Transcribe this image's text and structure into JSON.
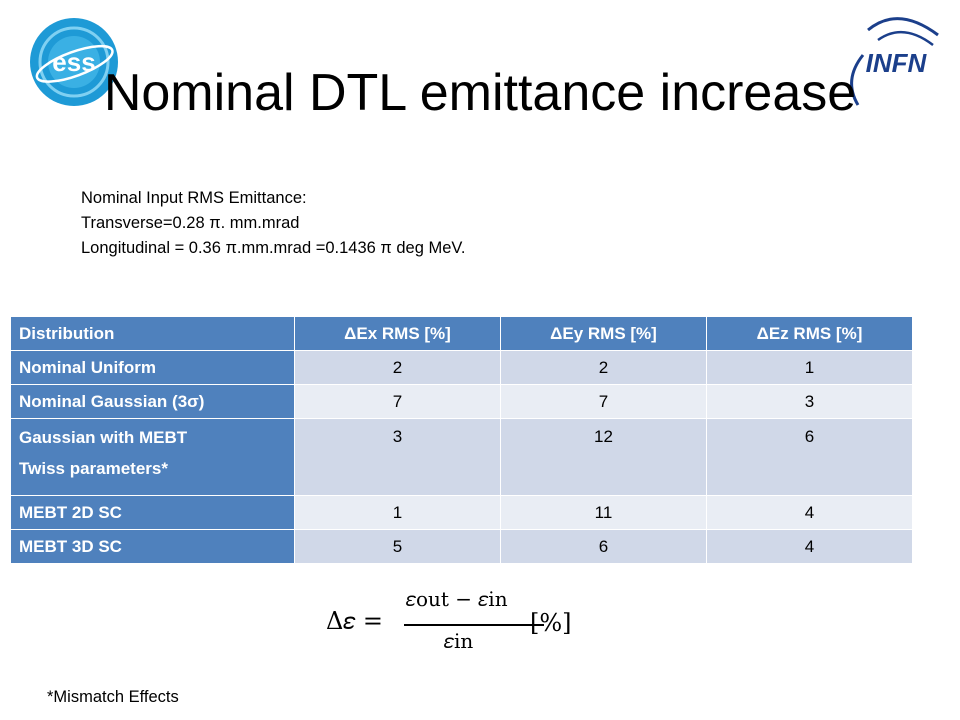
{
  "header": {
    "title": "Nominal DTL emittance increase",
    "logo_left_text": "ess",
    "logo_right_text": "INFN"
  },
  "intro": {
    "line1": "Nominal Input RMS Emittance:",
    "line2": "Transverse=0.28 π. mm.mrad",
    "line3": "Longitudinal = 0.36 π.mm.mrad =0.1436 π deg MeV."
  },
  "table": {
    "headers": [
      "Distribution",
      "ΔEx RMS [%]",
      "ΔEy RMS [%]",
      "ΔEz RMS [%]"
    ],
    "rows": [
      {
        "name": "Nominal Uniform",
        "ex": "2",
        "ey": "2",
        "ez": "1"
      },
      {
        "name": "Nominal Gaussian (3σ)",
        "ex": "7",
        "ey": "7",
        "ez": "3"
      },
      {
        "name_line1": "Gaussian with MEBT",
        "name_line2": "Twiss parameters*",
        "ex": "3",
        "ey": "12",
        "ez": "6"
      },
      {
        "name": "MEBT 2D SC",
        "ex": "1",
        "ey": "11",
        "ez": "4"
      },
      {
        "name": "MEBT 3D SC",
        "ex": "5",
        "ey": "6",
        "ez": "4"
      }
    ]
  },
  "formula": {
    "lhs": "Δ𝜀 =",
    "numerator": "𝜀out − 𝜀in",
    "denominator": "𝜀in",
    "unit": "[%]"
  },
  "footnote": "*Mismatch Effects",
  "colors": {
    "header_blue": "#4f81bd",
    "row_light": "#d0d8e8",
    "row_lighter": "#e9edf4",
    "ess_blue": "#1e9ad6",
    "infn_blue": "#1b3f8b"
  }
}
